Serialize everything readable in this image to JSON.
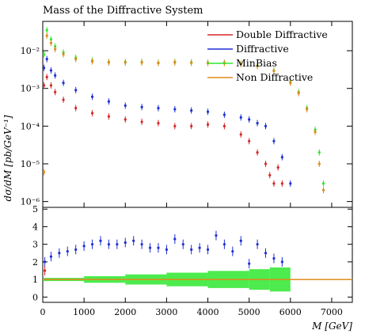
{
  "chart_data": [
    {
      "type": "scatter",
      "panel": "main",
      "title": "Mass of the Diffractive System",
      "ylabel": "dσ/dM [pb/GeV⁻¹]",
      "xlim": [
        0,
        7500
      ],
      "ylim": [
        7e-07,
        0.06
      ],
      "yscale": "log",
      "y_tick_labels": [
        "10⁻⁶",
        "10⁻⁵",
        "10⁻⁴",
        "10⁻³",
        "10⁻²"
      ],
      "legend_position": "top-right",
      "series": [
        {
          "name": "Double Diffractive",
          "color": "#d62728",
          "x": [
            30,
            100,
            200,
            300,
            500,
            800,
            1200,
            1600,
            2000,
            2400,
            2800,
            3200,
            3600,
            4000,
            4400,
            4800,
            5000,
            5200,
            5400,
            5500,
            5600,
            5700,
            5800
          ],
          "y": [
            0.0012,
            0.002,
            0.0012,
            0.0008,
            0.0005,
            0.0003,
            0.00022,
            0.00018,
            0.00015,
            0.00013,
            0.00012,
            0.0001,
            0.0001,
            0.00011,
            0.0001,
            6e-05,
            4e-05,
            2e-05,
            1e-05,
            5e-06,
            3e-06,
            8e-06,
            3e-06
          ]
        },
        {
          "name": "Diffractive",
          "color": "#1f2fd6",
          "x": [
            30,
            100,
            200,
            300,
            500,
            800,
            1200,
            1600,
            2000,
            2400,
            2800,
            3200,
            3600,
            4000,
            4400,
            4800,
            5000,
            5200,
            5400,
            5600,
            5800,
            6000
          ],
          "y": [
            0.0035,
            0.006,
            0.003,
            0.0022,
            0.0014,
            0.0009,
            0.0006,
            0.00045,
            0.00035,
            0.00032,
            0.0003,
            0.00028,
            0.00026,
            0.00024,
            0.0002,
            0.00017,
            0.00015,
            0.00012,
            0.0001,
            4e-05,
            1.5e-05,
            3e-06
          ]
        },
        {
          "name": "MinBias",
          "color": "#2ee82e",
          "x": [
            30,
            100,
            200,
            300,
            500,
            800,
            1200,
            1600,
            2000,
            2400,
            2800,
            3200,
            3600,
            4000,
            4400,
            4800,
            5200,
            5600,
            6000,
            6200,
            6400,
            6600,
            6700,
            6800
          ],
          "y": [
            0.008,
            0.035,
            0.02,
            0.013,
            0.009,
            0.0065,
            0.0055,
            0.005,
            0.005,
            0.005,
            0.0048,
            0.005,
            0.0049,
            0.0048,
            0.0048,
            0.0045,
            0.004,
            0.003,
            0.0015,
            0.0008,
            0.0003,
            8e-05,
            2e-05,
            3e-06
          ]
        },
        {
          "name": "Non Diffractive",
          "color": "#e08a1a",
          "x": [
            30,
            100,
            200,
            300,
            500,
            800,
            1200,
            1600,
            2000,
            2400,
            2800,
            3200,
            3600,
            4000,
            4400,
            4800,
            5200,
            5600,
            6000,
            6200,
            6400,
            6600,
            6700,
            6800
          ],
          "y": [
            6e-06,
            0.025,
            0.016,
            0.011,
            0.008,
            0.006,
            0.0052,
            0.0049,
            0.0049,
            0.0049,
            0.0047,
            0.0049,
            0.0048,
            0.0047,
            0.0047,
            0.0044,
            0.0039,
            0.0029,
            0.0014,
            0.00075,
            0.00028,
            7e-05,
            1e-05,
            2e-06
          ]
        }
      ]
    },
    {
      "type": "scatter",
      "panel": "ratio",
      "xlabel": "M [GeV]",
      "xlim": [
        0,
        7500
      ],
      "ylim": [
        -0.3,
        5.1
      ],
      "x_ticks": [
        0,
        1000,
        2000,
        3000,
        4000,
        5000,
        6000,
        7000
      ],
      "y_ticks": [
        0,
        1,
        2,
        3,
        4,
        5
      ],
      "series": [
        {
          "name": "Diffractive",
          "color": "#1f2fd6",
          "x": [
            50,
            200,
            400,
            600,
            800,
            1000,
            1200,
            1400,
            1600,
            1800,
            2000,
            2200,
            2400,
            2600,
            2800,
            3000,
            3200,
            3400,
            3600,
            3800,
            4000,
            4200,
            4400,
            4600,
            4800,
            5000,
            5200,
            5400,
            5600,
            5800
          ],
          "y": [
            2.0,
            2.3,
            2.5,
            2.6,
            2.7,
            2.9,
            3.0,
            3.2,
            3.0,
            3.0,
            3.1,
            3.2,
            3.0,
            2.8,
            2.8,
            2.7,
            3.3,
            3.0,
            2.7,
            2.8,
            2.7,
            3.5,
            3.0,
            2.6,
            3.2,
            1.9,
            3.0,
            2.5,
            2.2,
            2.0
          ]
        },
        {
          "name": "Double Diffractive",
          "color": "#d62728",
          "x": [
            50
          ],
          "y": [
            1.5
          ]
        },
        {
          "name": "MinBias",
          "color": "#2ee82e",
          "x": [
            0,
            1000,
            2000,
            3000,
            4000,
            5000,
            5500,
            6000
          ],
          "y": [
            1.0,
            1.0,
            1.0,
            1.0,
            1.0,
            1.0,
            1.0,
            1.0
          ]
        },
        {
          "name": "Non Diffractive",
          "color": "#e08a1a",
          "x": [
            0,
            7500
          ],
          "y": [
            1.0,
            1.0
          ]
        }
      ]
    }
  ]
}
